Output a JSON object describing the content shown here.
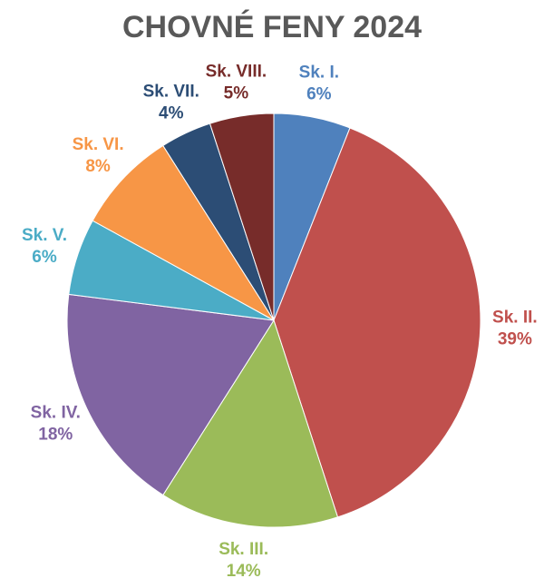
{
  "chart_data": {
    "type": "pie",
    "title": "CHOVNÉ FENY 2024",
    "categories": [
      "Sk. I.",
      "Sk. II.",
      "Sk. III.",
      "Sk. IV.",
      "Sk. V.",
      "Sk. VI.",
      "Sk. VII.",
      "Sk. VIII."
    ],
    "values": [
      6,
      39,
      14,
      18,
      6,
      8,
      4,
      5
    ],
    "value_labels": [
      "6%",
      "39%",
      "14%",
      "18%",
      "6%",
      "8%",
      "4%",
      "5%"
    ],
    "colors": [
      "#4f81bd",
      "#c0504d",
      "#9bbb59",
      "#8064a2",
      "#4bacc6",
      "#f79646",
      "#2c4d75",
      "#772c2a"
    ]
  }
}
